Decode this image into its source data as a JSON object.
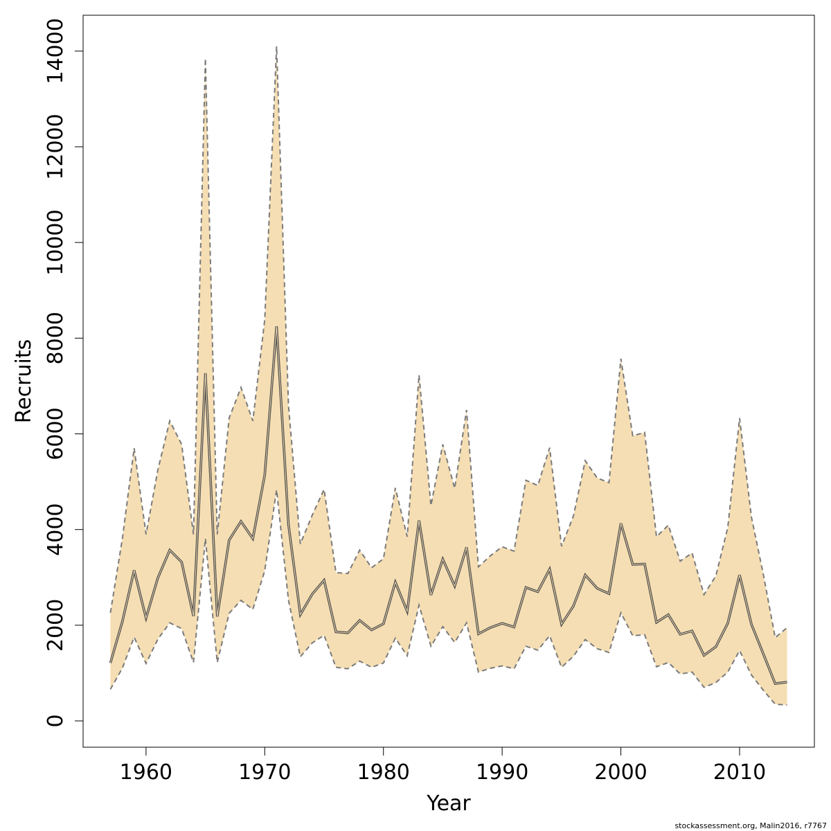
{
  "chart_data": {
    "type": "line",
    "xlabel": "Year",
    "ylabel": "Recruits",
    "xlim": [
      1954.7,
      2016.3
    ],
    "ylim": [
      -550,
      14750
    ],
    "x_ticks": [
      1960,
      1970,
      1980,
      1990,
      2000,
      2010
    ],
    "y_ticks": [
      0,
      2000,
      4000,
      6000,
      8000,
      10000,
      12000,
      14000
    ],
    "band_color": "#F5DEB3",
    "line_color": "#4d4d4d",
    "band_edge_color": "#7a7a7a",
    "grid": false,
    "x": [
      1957,
      1958,
      1959,
      1960,
      1961,
      1962,
      1963,
      1964,
      1965,
      1966,
      1967,
      1968,
      1969,
      1970,
      1971,
      1972,
      1973,
      1974,
      1975,
      1976,
      1977,
      1978,
      1979,
      1980,
      1981,
      1982,
      1983,
      1984,
      1985,
      1986,
      1987,
      1988,
      1989,
      1990,
      1991,
      1992,
      1993,
      1994,
      1995,
      1996,
      1997,
      1998,
      1999,
      2000,
      2001,
      2002,
      2003,
      2004,
      2005,
      2006,
      2007,
      2008,
      2009,
      2010,
      2011,
      2012,
      2013,
      2014
    ],
    "series": [
      {
        "values": [
          1210,
          2070,
          3150,
          2150,
          2990,
          3570,
          3320,
          2190,
          7270,
          2180,
          3780,
          4170,
          3810,
          5140,
          8250,
          4100,
          2220,
          2650,
          2940,
          1860,
          1840,
          2100,
          1900,
          2030,
          2900,
          2290,
          4190,
          2630,
          3380,
          2820,
          3630,
          1820,
          1950,
          2040,
          1960,
          2790,
          2700,
          3170,
          2020,
          2400,
          3050,
          2770,
          2660,
          4130,
          3270,
          3280,
          2060,
          2220,
          1810,
          1880,
          1370,
          1550,
          2040,
          3050,
          2020,
          1400,
          780,
          810
        ]
      },
      {
        "values": [
          2260,
          3800,
          5700,
          3900,
          5250,
          6270,
          5780,
          3900,
          13850,
          3900,
          6330,
          6970,
          6270,
          8390,
          14100,
          6590,
          3700,
          4300,
          4840,
          3100,
          3080,
          3570,
          3200,
          3390,
          4870,
          3850,
          7230,
          4500,
          5780,
          4860,
          6500,
          3220,
          3450,
          3640,
          3550,
          5030,
          4920,
          5710,
          3650,
          4280,
          5440,
          5080,
          4980,
          7570,
          5960,
          6030,
          3850,
          4090,
          3340,
          3510,
          2640,
          3030,
          4040,
          6330,
          4260,
          3060,
          1740,
          1950
        ]
      },
      {
        "values": [
          660,
          1100,
          1750,
          1200,
          1710,
          2050,
          1930,
          1220,
          3810,
          1220,
          2250,
          2520,
          2330,
          3140,
          4830,
          2520,
          1340,
          1630,
          1790,
          1120,
          1090,
          1250,
          1120,
          1210,
          1730,
          1360,
          2420,
          1560,
          1970,
          1640,
          2050,
          1020,
          1100,
          1150,
          1090,
          1560,
          1480,
          1780,
          1120,
          1350,
          1700,
          1510,
          1430,
          2260,
          1780,
          1800,
          1130,
          1220,
          980,
          1020,
          700,
          800,
          1020,
          1470,
          960,
          640,
          350,
          330
        ]
      }
    ]
  },
  "credit": "stockassessment.org, Malin2016, r7767"
}
